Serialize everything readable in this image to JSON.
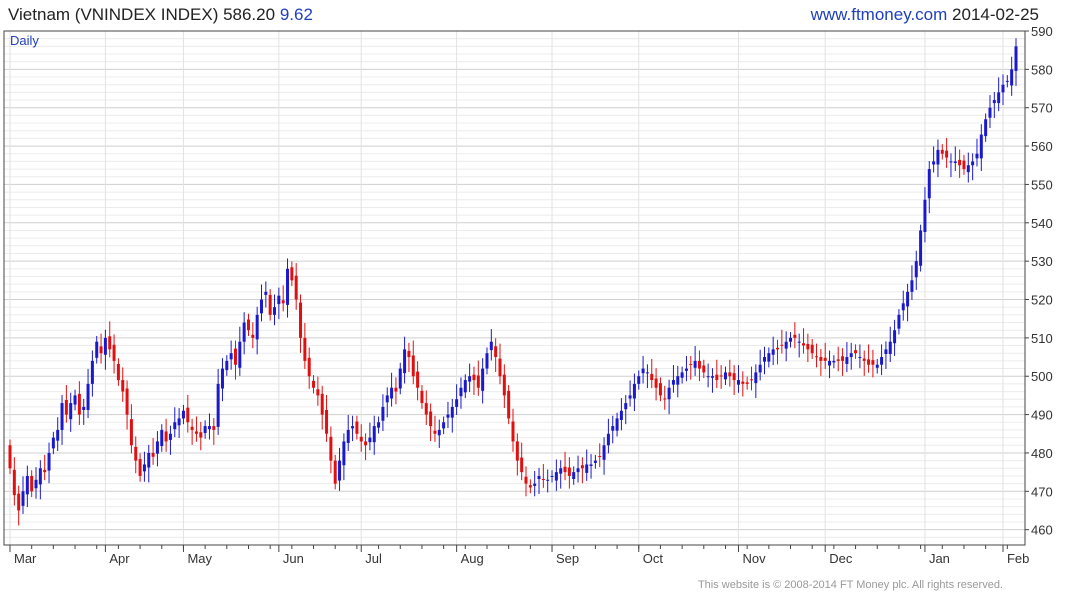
{
  "header": {
    "title": "Vietnam (VNINDEX INDEX) 586.20",
    "change": "9.62",
    "site": "www.ftmoney.com",
    "date": "2014-02-25"
  },
  "footer": {
    "copyright": "This website is © 2008-2014 FT Money plc. All rights reserved."
  },
  "colors": {
    "up": "#1a1acc",
    "down": "#e01010",
    "grid": "#d4d4d4",
    "axis": "#444444",
    "period_label": "#1f3fbf"
  },
  "chart_data": {
    "type": "candlestick",
    "period_label": "Daily",
    "ylim": [
      456,
      590
    ],
    "yticks": [
      460,
      470,
      480,
      490,
      500,
      510,
      520,
      530,
      540,
      550,
      560,
      570,
      580,
      590
    ],
    "x_labels": [
      {
        "label": "Mar",
        "index": 0
      },
      {
        "label": "Apr",
        "index": 22
      },
      {
        "label": "May",
        "index": 40
      },
      {
        "label": "Jun",
        "index": 62
      },
      {
        "label": "Jul",
        "index": 81
      },
      {
        "label": "Aug",
        "index": 103
      },
      {
        "label": "Sep",
        "index": 125
      },
      {
        "label": "Oct",
        "index": 145
      },
      {
        "label": "Nov",
        "index": 168
      },
      {
        "label": "Dec",
        "index": 188
      },
      {
        "label": "Jan",
        "index": 211
      },
      {
        "label": "Feb",
        "index": 229
      }
    ],
    "close": [
      476,
      469,
      465,
      470,
      474,
      470,
      473,
      476,
      475,
      480,
      484,
      486,
      493,
      490,
      493,
      495,
      490,
      492,
      498,
      504,
      509,
      506,
      510,
      507,
      504,
      499,
      496,
      490,
      482,
      478,
      474,
      477,
      480,
      479,
      483,
      486,
      483,
      485,
      488,
      489,
      491,
      488,
      486,
      485,
      484,
      487,
      487,
      486,
      498,
      502,
      504,
      506,
      503,
      509,
      514,
      512,
      510,
      516,
      520,
      522,
      516,
      518,
      521,
      519,
      528,
      525,
      520,
      510,
      504,
      500,
      497,
      495,
      490,
      485,
      478,
      472,
      478,
      483,
      486,
      487,
      485,
      483,
      482,
      484,
      487,
      488,
      492,
      495,
      497,
      496,
      502,
      507,
      505,
      500,
      497,
      493,
      490,
      487,
      485,
      486,
      488,
      490,
      492,
      494,
      497,
      499,
      500,
      499,
      497,
      502,
      506,
      509,
      505,
      500,
      495,
      489,
      483,
      478,
      475,
      472,
      471,
      472,
      474,
      473,
      473,
      474,
      475,
      476,
      475,
      474,
      475,
      476,
      476,
      477,
      477,
      478,
      479,
      482,
      485,
      487,
      489,
      491,
      493,
      495,
      498,
      500,
      502,
      501,
      499,
      497,
      495,
      494,
      497,
      499,
      500,
      501,
      502,
      503,
      504,
      502,
      501,
      500,
      500,
      499,
      500,
      501,
      500,
      499,
      499,
      498,
      498,
      499,
      501,
      503,
      505,
      506,
      507,
      507,
      508,
      509,
      510,
      510,
      509,
      508,
      507,
      506,
      505,
      504,
      504,
      504,
      504,
      504,
      504,
      505,
      506,
      506,
      505,
      504,
      503,
      503,
      503,
      505,
      507,
      509,
      512,
      516,
      519,
      522,
      525,
      530,
      538,
      546,
      554,
      556,
      559,
      558,
      557,
      556,
      556,
      555,
      554,
      555,
      556,
      558,
      563,
      567,
      570,
      572,
      574,
      576,
      577,
      580,
      586
    ]
  }
}
